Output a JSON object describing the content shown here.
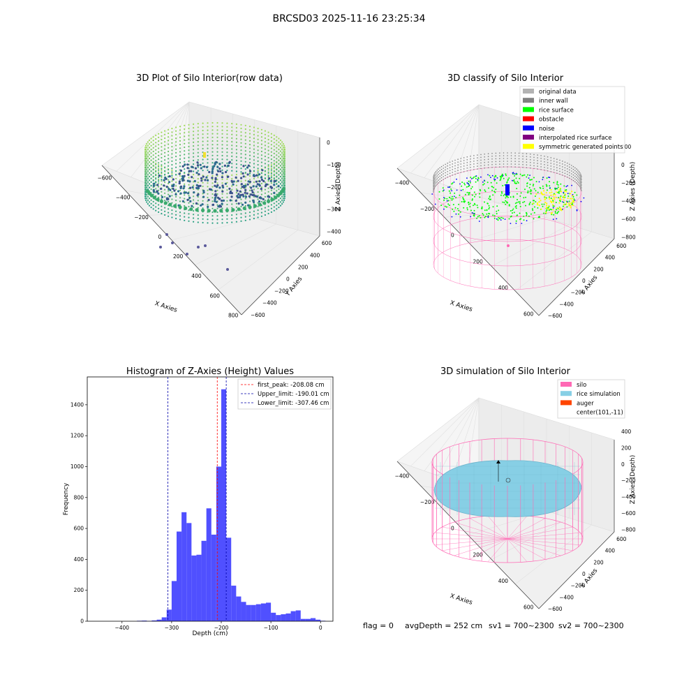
{
  "figure": {
    "suptitle": "BRCSD03 2025-11-16 23:25:34",
    "footer": {
      "flag": "flag = 0",
      "avg_depth": "avgDepth = 252 cm",
      "sv1": "sv1 = 700~2300",
      "sv2": "sv2 = 700~2300"
    }
  },
  "colors": {
    "hist_bar": "#4d4dff",
    "first_peak_line": "#ff0000",
    "limit_line": "#0000aa",
    "silo_wire": "#ff69b4",
    "rice_simulation": "#87cfe5",
    "auger": "#ff4500",
    "inner_wall": "#808080",
    "rice_surface": "#00ff00",
    "obstacle": "#ff0000",
    "noise": "#0000ff",
    "interpolated": "#800080",
    "symmetric": "#ffff00",
    "original": "#b3b3b3"
  },
  "chart_data": [
    {
      "type": "scatter3d",
      "title": "3D Plot of Silo Interior(row data)",
      "xlabel": "X Axies",
      "ylabel": "Y Axies",
      "zlabel": "Z Axies (Depth)",
      "x_ticks": [
        "−600",
        "−400",
        "−200",
        "0",
        "200",
        "400",
        "600",
        "800"
      ],
      "y_ticks": [
        "−600",
        "−400",
        "−200",
        "0",
        "200",
        "400",
        "600"
      ],
      "z_ticks": [
        "0",
        "−100",
        "−200",
        "−300",
        "−400"
      ],
      "xlim": [
        -600,
        800
      ],
      "ylim": [
        -600,
        600
      ],
      "zlim": [
        -450,
        0
      ]
    },
    {
      "type": "scatter3d",
      "title": "3D classify of Silo Interior",
      "xlabel": "X Axies",
      "ylabel": "Y Axies",
      "zlabel": "Z Axies (Depth)",
      "x_ticks": [
        "−400",
        "−200",
        "0",
        "200",
        "400",
        "600"
      ],
      "y_ticks": [
        "−600",
        "−400",
        "−200",
        "0",
        "200",
        "400",
        "600"
      ],
      "z_ticks": [
        "200",
        "0",
        "−200",
        "−400",
        "−600",
        "−800"
      ],
      "legend": [
        {
          "label": "original data",
          "color": "#b3b3b3"
        },
        {
          "label": "inner wall",
          "color": "#808080"
        },
        {
          "label": "rice surface",
          "color": "#00ff00"
        },
        {
          "label": "obstacle",
          "color": "#ff0000"
        },
        {
          "label": "noise",
          "color": "#0000ff"
        },
        {
          "label": "interpolated rice surface",
          "color": "#800080"
        },
        {
          "label": "symmetric generated points",
          "color": "#ffff00"
        }
      ],
      "legend_position": "top-right"
    },
    {
      "type": "bar",
      "title": "Histogram of Z-Axies (Height) Values",
      "xlabel": "Depth (cm)",
      "ylabel": "Frequency",
      "xlim": [
        -470,
        25
      ],
      "ylim": [
        0,
        1580
      ],
      "x_ticks": [
        -400,
        -300,
        -200,
        -100,
        0
      ],
      "x_tick_labels": [
        "−400",
        "−300",
        "−200",
        "−100",
        "0"
      ],
      "y_ticks": [
        0,
        200,
        400,
        600,
        800,
        1000,
        1200,
        1400
      ],
      "bin_width": 10,
      "bins": [
        {
          "x": -365,
          "v": 3
        },
        {
          "x": -355,
          "v": 4
        },
        {
          "x": -345,
          "v": 2
        },
        {
          "x": -335,
          "v": 5
        },
        {
          "x": -325,
          "v": 10
        },
        {
          "x": -315,
          "v": 25
        },
        {
          "x": -305,
          "v": 75
        },
        {
          "x": -295,
          "v": 260
        },
        {
          "x": -285,
          "v": 580
        },
        {
          "x": -275,
          "v": 705
        },
        {
          "x": -265,
          "v": 635
        },
        {
          "x": -255,
          "v": 425
        },
        {
          "x": -245,
          "v": 430
        },
        {
          "x": -235,
          "v": 520
        },
        {
          "x": -225,
          "v": 730
        },
        {
          "x": -215,
          "v": 560
        },
        {
          "x": -205,
          "v": 1000
        },
        {
          "x": -195,
          "v": 1500
        },
        {
          "x": -185,
          "v": 540
        },
        {
          "x": -175,
          "v": 230
        },
        {
          "x": -165,
          "v": 160
        },
        {
          "x": -155,
          "v": 125
        },
        {
          "x": -145,
          "v": 105
        },
        {
          "x": -135,
          "v": 105
        },
        {
          "x": -125,
          "v": 110
        },
        {
          "x": -115,
          "v": 115
        },
        {
          "x": -105,
          "v": 120
        },
        {
          "x": -95,
          "v": 55
        },
        {
          "x": -85,
          "v": 40
        },
        {
          "x": -75,
          "v": 45
        },
        {
          "x": -65,
          "v": 50
        },
        {
          "x": -55,
          "v": 65
        },
        {
          "x": -45,
          "v": 70
        },
        {
          "x": -35,
          "v": 15
        },
        {
          "x": -25,
          "v": 15
        },
        {
          "x": -15,
          "v": 20
        },
        {
          "x": -5,
          "v": 10
        },
        {
          "x": 5,
          "v": 3
        }
      ],
      "vlines": [
        {
          "x": -208.08,
          "label": "first_peak: -208.08 cm",
          "color": "#ff0000"
        },
        {
          "x": -190.01,
          "label": "Upper_limit: -190.01 cm",
          "color": "#0000aa"
        },
        {
          "x": -307.46,
          "label": "Lower_limit: -307.46 cm",
          "color": "#0000aa"
        }
      ],
      "legend_position": "top-right"
    },
    {
      "type": "surface3d",
      "title": "3D simulation of Silo Interior",
      "xlabel": "X Axies",
      "ylabel": "Y Axies",
      "zlabel": "Z Axies (Depth)",
      "x_ticks": [
        "−400",
        "−200",
        "0",
        "200",
        "400",
        "600"
      ],
      "y_ticks": [
        "−600",
        "−400",
        "−200",
        "0",
        "200",
        "400",
        "600"
      ],
      "z_ticks": [
        "400",
        "200",
        "0",
        "−200",
        "−400",
        "−600",
        "−800"
      ],
      "legend": [
        {
          "label": "silo",
          "color": "#ff69b4"
        },
        {
          "label": "rice simulation",
          "color": "#87cfe5"
        },
        {
          "label": "auger",
          "color": "#ff4500"
        },
        {
          "label": "center(101,-11)",
          "color": ""
        }
      ],
      "legend_position": "top-right"
    }
  ]
}
